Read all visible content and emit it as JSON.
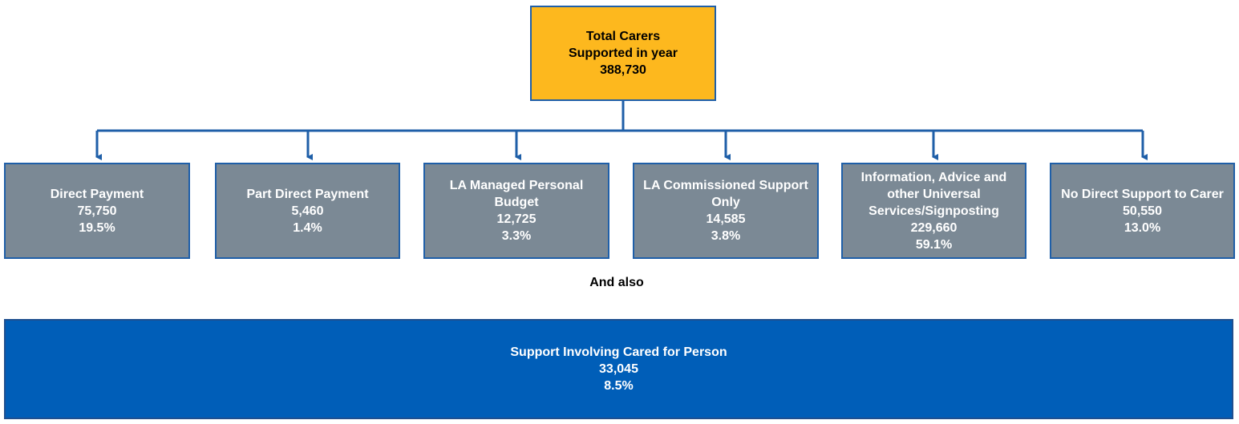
{
  "root": {
    "label": "Total Carers Supported in year",
    "value": "388,730"
  },
  "nodes": [
    {
      "label": "Direct Payment",
      "value": "75,750",
      "share": "19.5%"
    },
    {
      "label": "Part Direct Payment",
      "value": "5,460",
      "share": "1.4%"
    },
    {
      "label": "LA Managed Personal Budget",
      "value": "12,725",
      "share": "3.3%"
    },
    {
      "label": "LA Commissioned Support Only",
      "value": "14,585",
      "share": "3.8%"
    },
    {
      "label": "Information, Advice and other Universal Services/Signposting",
      "value": "229,660",
      "share": "59.1%"
    },
    {
      "label": "No Direct Support to Carer",
      "value": "50,550",
      "share": "13.0%"
    }
  ],
  "connector": "And also",
  "extra": {
    "label": "Support Involving Cared for Person",
    "value": "33,045",
    "share": "8.5%"
  }
}
